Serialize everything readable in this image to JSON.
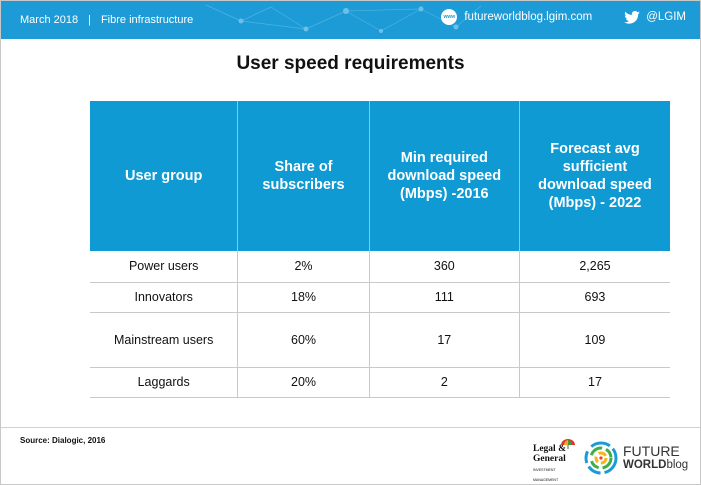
{
  "header": {
    "date": "March 2018",
    "separator": "|",
    "section": "Fibre infrastructure",
    "www_icon_text": "www",
    "website": "futureworldblog.lgim.com",
    "twitter_handle": "@LGIM"
  },
  "title": "User speed requirements",
  "table": {
    "headers": [
      "User group",
      "Share of subscribers",
      "Min required download speed (Mbps) -2016",
      "Forecast avg sufficient download speed (Mbps) - 2022"
    ],
    "rows": [
      [
        "Power users",
        "2%",
        "360",
        "2,265"
      ],
      [
        "Innovators",
        "18%",
        "111",
        "693"
      ],
      [
        "Mainstream  users",
        "60%",
        "17",
        "109"
      ],
      [
        "Laggards",
        "20%",
        "2",
        "17"
      ]
    ]
  },
  "footer": {
    "source": "Source:  Dialogic,  2016",
    "lg_logo_line1": "Legal &",
    "lg_logo_line2": "General",
    "lg_logo_tag": "INVESTMENT MANAGEMENT",
    "fw_logo_line1": "FUTURE",
    "fw_logo_line2": "WORLD",
    "fw_logo_line3": "blog"
  }
}
